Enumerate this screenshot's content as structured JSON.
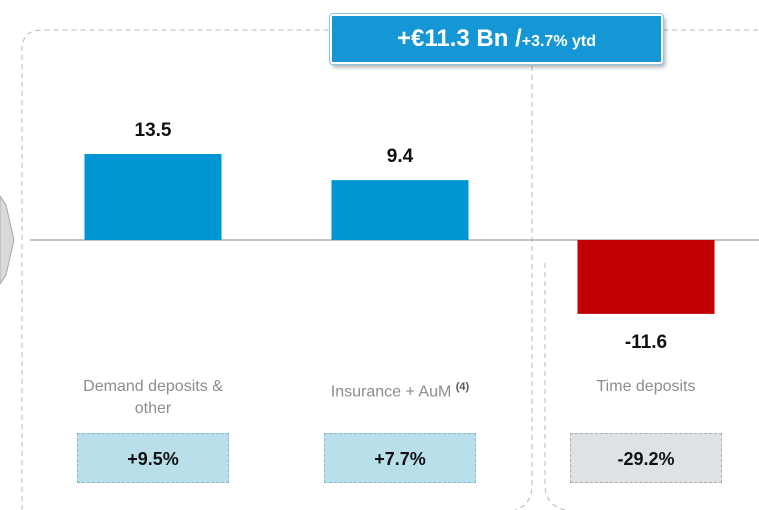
{
  "chart_data": {
    "type": "bar",
    "badge": {
      "main": "+€11.3 Bn /",
      "sub": "+3.7% ytd"
    },
    "categories": [
      "Demand deposits & other",
      "Insurance + AuM",
      "Time deposits"
    ],
    "category_superscripts": [
      null,
      "(4)",
      null
    ],
    "values": [
      13.5,
      9.4,
      -11.6
    ],
    "colors": [
      "#0096d6",
      "#0096d6",
      "#c00000"
    ],
    "changes": [
      "+9.5%",
      "+7.7%",
      "-29.2%"
    ],
    "change_colors": [
      "#b8dfea",
      "#b8dfea",
      "#dfe2e5"
    ]
  }
}
